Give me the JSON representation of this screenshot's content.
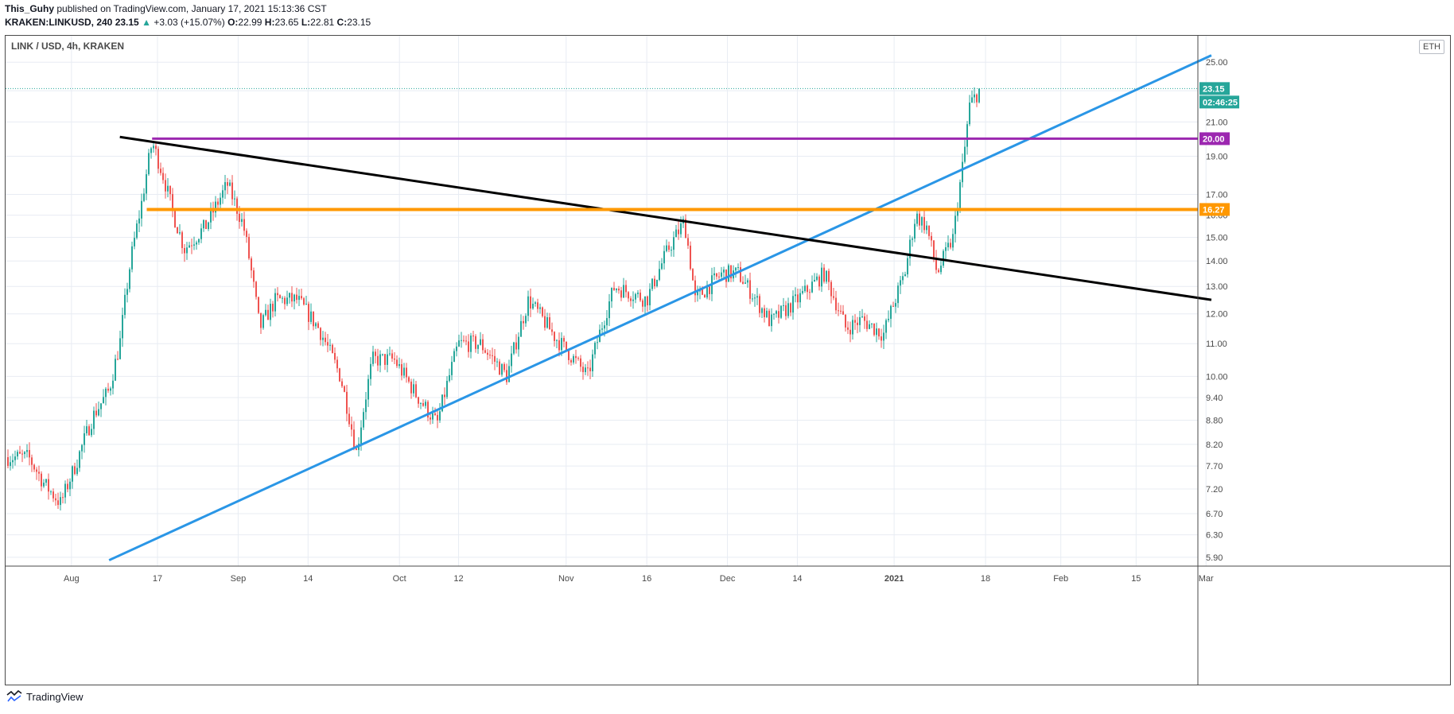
{
  "header": {
    "author": "This_Guhy",
    "published_text": "published on TradingView.com, January 17, 2021 15:13:36 CST",
    "symbol": "KRAKEN:LINKUSD, 240",
    "last": "23.15",
    "change_arrow": "▲",
    "change": "+3.03 (+15.07%)",
    "o_label": "O:",
    "o_value": "22.99",
    "h_label": "H:",
    "h_value": "23.65",
    "l_label": "L:",
    "l_value": "22.81",
    "c_label": "C:",
    "c_value": "23.15"
  },
  "footer": {
    "brand": "TradingView",
    "logo_icon": "tradingview-logo-icon"
  },
  "currency_toggle": "ETH",
  "colors": {
    "up": "#26a69a",
    "down": "#ef5350",
    "blue_line": "#2a96e6",
    "black_line": "#000000",
    "purple_line": "#9c27b0",
    "orange_line": "#ff9800",
    "grid": "#e8ecf3"
  },
  "chart_data": {
    "type": "candlestick",
    "title": "LINK / USD, 4h, KRAKEN",
    "x_ticks": [
      "Aug",
      "17",
      "Sep",
      "14",
      "Oct",
      "12",
      "Nov",
      "16",
      "Dec",
      "14",
      "2021",
      "18",
      "Feb",
      "15",
      "Mar"
    ],
    "y_ticks": [
      5.9,
      6.3,
      6.7,
      7.2,
      7.7,
      8.2,
      8.8,
      9.4,
      10.0,
      11.0,
      12.0,
      13.0,
      14.0,
      15.0,
      16.0,
      17.0,
      19.0,
      21.0,
      23.0,
      25.0
    ],
    "y_scale": "log",
    "ylim": [
      5.75,
      27.0
    ],
    "close_series": [
      {
        "x": "Jul 24",
        "y": 7.9
      },
      {
        "x": "Jul 27",
        "y": 7.3
      },
      {
        "x": "Jul 30",
        "y": 6.9
      },
      {
        "x": "Aug 2",
        "y": 7.8
      },
      {
        "x": "Aug 5",
        "y": 8.9
      },
      {
        "x": "Aug 8",
        "y": 9.6
      },
      {
        "x": "Aug 10",
        "y": 11.0
      },
      {
        "x": "Aug 12",
        "y": 14.0
      },
      {
        "x": "Aug 14",
        "y": 16.5
      },
      {
        "x": "Aug 16",
        "y": 19.8
      },
      {
        "x": "Aug 18",
        "y": 18.0
      },
      {
        "x": "Aug 20",
        "y": 16.0
      },
      {
        "x": "Aug 22",
        "y": 14.5
      },
      {
        "x": "Aug 26",
        "y": 15.5
      },
      {
        "x": "Aug 30",
        "y": 17.5
      },
      {
        "x": "Sep 2",
        "y": 15.5
      },
      {
        "x": "Sep 5",
        "y": 11.5
      },
      {
        "x": "Sep 8",
        "y": 12.5
      },
      {
        "x": "Sep 12",
        "y": 12.5
      },
      {
        "x": "Sep 16",
        "y": 11.5
      },
      {
        "x": "Sep 20",
        "y": 10.0
      },
      {
        "x": "Sep 23",
        "y": 8.0
      },
      {
        "x": "Sep 26",
        "y": 10.5
      },
      {
        "x": "Sep 30",
        "y": 10.5
      },
      {
        "x": "Oct 4",
        "y": 9.5
      },
      {
        "x": "Oct 8",
        "y": 8.7
      },
      {
        "x": "Oct 12",
        "y": 11.0
      },
      {
        "x": "Oct 16",
        "y": 11.0
      },
      {
        "x": "Oct 21",
        "y": 10.0
      },
      {
        "x": "Oct 25",
        "y": 12.5
      },
      {
        "x": "Oct 30",
        "y": 11.2
      },
      {
        "x": "Nov 5",
        "y": 10.0
      },
      {
        "x": "Nov 10",
        "y": 13.0
      },
      {
        "x": "Nov 16",
        "y": 12.5
      },
      {
        "x": "Nov 20",
        "y": 14.5
      },
      {
        "x": "Nov 23",
        "y": 15.7
      },
      {
        "x": "Nov 25",
        "y": 12.5
      },
      {
        "x": "Nov 30",
        "y": 13.5
      },
      {
        "x": "Dec 3",
        "y": 13.5
      },
      {
        "x": "Dec 9",
        "y": 11.7
      },
      {
        "x": "Dec 14",
        "y": 12.5
      },
      {
        "x": "Dec 19",
        "y": 13.5
      },
      {
        "x": "Dec 23",
        "y": 11.5
      },
      {
        "x": "Dec 26",
        "y": 11.8
      },
      {
        "x": "Dec 30",
        "y": 11.3
      },
      {
        "x": "Jan 3",
        "y": 13.5
      },
      {
        "x": "Jan 5",
        "y": 16.0
      },
      {
        "x": "Jan 7",
        "y": 15.5
      },
      {
        "x": "Jan 9",
        "y": 13.5
      },
      {
        "x": "Jan 12",
        "y": 15.0
      },
      {
        "x": "Jan 14",
        "y": 19.0
      },
      {
        "x": "Jan 15",
        "y": 22.0
      },
      {
        "x": "Jan 17",
        "y": 23.15
      }
    ],
    "annotations": {
      "last_price_label": "23.15",
      "countdown_label": "02:46:25",
      "purple_level": 20.0,
      "purple_label": "20.00",
      "orange_level": 16.27,
      "orange_label": "16.27",
      "blue_trendline": [
        {
          "x": "Aug 8",
          "y": 5.85
        },
        {
          "x": "Mar 1",
          "y": 25.5
        }
      ],
      "black_trendline": [
        {
          "x": "Aug 10",
          "y": 20.1
        },
        {
          "x": "Mar 1",
          "y": 12.5
        }
      ]
    },
    "grid": true,
    "legend": "none"
  }
}
